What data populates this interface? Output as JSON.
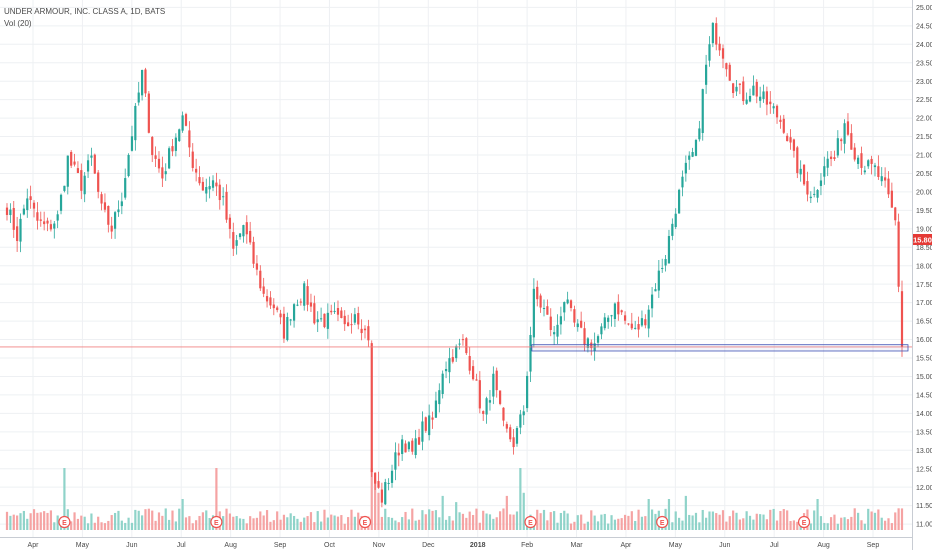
{
  "header": {
    "symbol_line": "UNDER ARMOUR, INC. CLASS A, 1D, BATS",
    "volume_label": "Vol (20)"
  },
  "price_label": "15.80",
  "earnings_marker_label": "E",
  "colors": {
    "up": "#26a69a",
    "down": "#ef5350",
    "up_volume": "#8fd3c9",
    "down_volume": "#f5a3a3",
    "grid": "#eef0f3",
    "axis_text": "#4a4a4a",
    "price_line": "#f08080",
    "price_label_bg": "#e53935",
    "zone_stroke": "#3f51b5"
  },
  "chart_data": {
    "type": "candlestick",
    "title": "UNDER ARMOUR, INC. CLASS A, 1D, BATS",
    "interval": "1D",
    "y_axis_position": "right",
    "ylim": [
      10.65,
      25.2
    ],
    "y_ticks": [
      "11.00",
      "11.50",
      "12.00",
      "12.50",
      "13.00",
      "13.50",
      "14.00",
      "14.50",
      "15.00",
      "15.50",
      "16.00",
      "16.50",
      "17.00",
      "17.50",
      "18.00",
      "18.50",
      "19.00",
      "19.50",
      "20.00",
      "20.50",
      "21.00",
      "21.50",
      "22.00",
      "22.50",
      "23.00",
      "23.50",
      "24.00",
      "24.50",
      "25.00"
    ],
    "x_ticks": [
      "Apr",
      "May",
      "Jun",
      "Jul",
      "Aug",
      "Sep",
      "Oct",
      "Nov",
      "Dec",
      "2018",
      "Feb",
      "Mar",
      "Apr",
      "May",
      "Jun",
      "Jul",
      "Aug",
      "Sep"
    ],
    "last_price": 15.8,
    "support_zone": [
      15.69,
      15.86
    ],
    "price_anchors": [
      [
        0,
        19.6
      ],
      [
        3,
        18.8
      ],
      [
        6,
        19.9
      ],
      [
        9,
        19.2
      ],
      [
        12,
        19.0
      ],
      [
        15,
        19.3
      ],
      [
        18,
        20.9
      ],
      [
        22,
        20.2
      ],
      [
        25,
        20.9
      ],
      [
        28,
        19.5
      ],
      [
        31,
        19.0
      ],
      [
        34,
        19.9
      ],
      [
        37,
        21.6
      ],
      [
        40,
        23.2
      ],
      [
        43,
        21.1
      ],
      [
        46,
        20.4
      ],
      [
        49,
        21.3
      ],
      [
        52,
        22.0
      ],
      [
        55,
        20.8
      ],
      [
        58,
        20.1
      ],
      [
        61,
        20.3
      ],
      [
        64,
        19.7
      ],
      [
        67,
        18.4
      ],
      [
        70,
        19.1
      ],
      [
        73,
        18.1
      ],
      [
        76,
        17.2
      ],
      [
        79,
        16.9
      ],
      [
        82,
        16.2
      ],
      [
        85,
        17.0
      ],
      [
        88,
        17.3
      ],
      [
        91,
        16.6
      ],
      [
        94,
        16.5
      ],
      [
        97,
        16.6
      ],
      [
        100,
        16.3
      ],
      [
        103,
        16.8
      ],
      [
        106,
        16.2
      ],
      [
        107,
        16.1
      ],
      [
        108,
        12.3
      ],
      [
        111,
        11.7
      ],
      [
        114,
        12.5
      ],
      [
        117,
        13.3
      ],
      [
        120,
        12.9
      ],
      [
        123,
        13.6
      ],
      [
        126,
        13.8
      ],
      [
        129,
        15.2
      ],
      [
        132,
        15.6
      ],
      [
        135,
        15.9
      ],
      [
        138,
        15.1
      ],
      [
        141,
        13.9
      ],
      [
        144,
        14.9
      ],
      [
        147,
        13.6
      ],
      [
        150,
        13.2
      ],
      [
        153,
        14.1
      ],
      [
        156,
        17.2
      ],
      [
        159,
        16.8
      ],
      [
        162,
        16.1
      ],
      [
        165,
        17.1
      ],
      [
        168,
        16.4
      ],
      [
        171,
        16.0
      ],
      [
        174,
        15.9
      ],
      [
        177,
        16.4
      ],
      [
        180,
        17.0
      ],
      [
        183,
        16.5
      ],
      [
        186,
        16.2
      ],
      [
        189,
        16.6
      ],
      [
        192,
        17.5
      ],
      [
        195,
        18.3
      ],
      [
        198,
        19.6
      ],
      [
        201,
        20.6
      ],
      [
        204,
        21.2
      ],
      [
        207,
        23.4
      ],
      [
        209,
        24.4
      ],
      [
        212,
        23.8
      ],
      [
        215,
        22.9
      ],
      [
        218,
        22.6
      ],
      [
        221,
        22.8
      ],
      [
        224,
        22.5
      ],
      [
        227,
        22.2
      ],
      [
        230,
        21.8
      ],
      [
        233,
        20.9
      ],
      [
        236,
        20.2
      ],
      [
        239,
        19.9
      ],
      [
        242,
        20.8
      ],
      [
        245,
        20.9
      ],
      [
        248,
        21.9
      ],
      [
        251,
        21.1
      ],
      [
        254,
        20.7
      ],
      [
        257,
        20.6
      ],
      [
        260,
        20.1
      ],
      [
        263,
        19.2
      ],
      [
        265,
        15.8
      ]
    ],
    "candle_count": 266,
    "volume": {
      "series_name": "Vol (20)",
      "typical_range": [
        0.1,
        0.35
      ],
      "spikes": [
        {
          "bar": 17,
          "level": 1.0
        },
        {
          "bar": 52,
          "level": 0.5
        },
        {
          "bar": 62,
          "level": 1.0
        },
        {
          "bar": 108,
          "level": 1.0
        },
        {
          "bar": 109,
          "level": 0.8
        },
        {
          "bar": 110,
          "level": 0.6
        },
        {
          "bar": 129,
          "level": 0.55
        },
        {
          "bar": 133,
          "level": 0.45
        },
        {
          "bar": 148,
          "level": 0.55
        },
        {
          "bar": 152,
          "level": 1.0
        },
        {
          "bar": 153,
          "level": 0.6
        },
        {
          "bar": 190,
          "level": 0.5
        },
        {
          "bar": 196,
          "level": 0.5
        },
        {
          "bar": 201,
          "level": 0.55
        },
        {
          "bar": 240,
          "level": 0.5
        },
        {
          "bar": 251,
          "level": 0.35
        }
      ]
    },
    "earnings_bars": [
      17,
      62,
      106,
      155,
      194,
      236
    ]
  }
}
